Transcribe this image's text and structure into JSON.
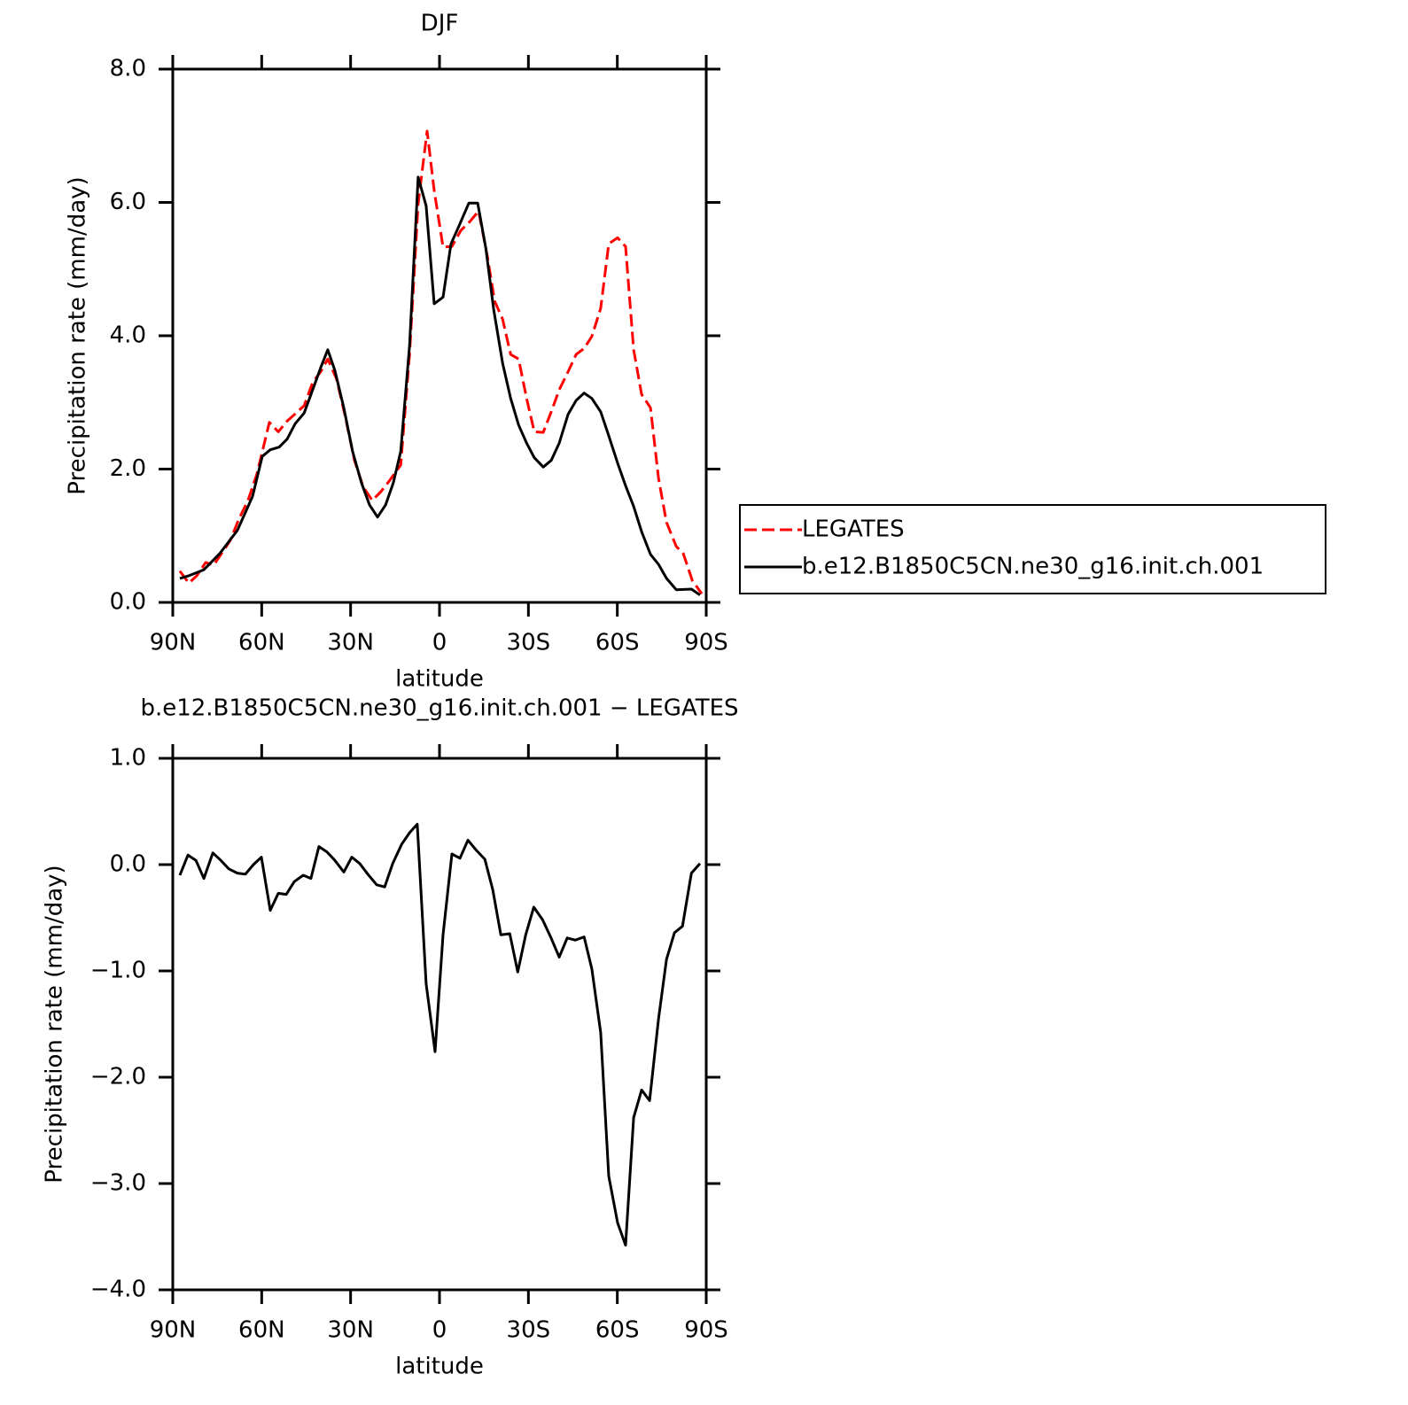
{
  "chart_data": [
    {
      "type": "line",
      "title": "DJF",
      "xlabel": "latitude",
      "ylabel": "Precipitation rate (mm/day)",
      "xlim": [
        90,
        -90
      ],
      "xticks": [
        {
          "value": 90,
          "label": "90N"
        },
        {
          "value": 60,
          "label": "60N"
        },
        {
          "value": 30,
          "label": "30N"
        },
        0,
        {
          "value": -30,
          "label": "30S"
        },
        {
          "value": -60,
          "label": "60S"
        },
        {
          "value": -90,
          "label": "90S"
        }
      ],
      "ylim": [
        0,
        8
      ],
      "yticks": [
        {
          "value": 0,
          "label": "0.0"
        },
        {
          "value": 2,
          "label": "2.0"
        },
        {
          "value": 4,
          "label": "4.0"
        },
        {
          "value": 6,
          "label": "6.0"
        },
        {
          "value": 8,
          "label": "8.0"
        }
      ],
      "legend": "right",
      "series": [
        {
          "name": "LEGATES",
          "color": "#ff0000",
          "dash": true,
          "x": [
            87.6,
            84.6,
            81.9,
            78.9,
            76.2,
            73.6,
            70.6,
            67.6,
            64.6,
            61.6,
            57.4,
            54.4,
            51.4,
            48.4,
            45.7,
            42.8,
            40.1,
            37.7,
            34.7,
            31.8,
            28.7,
            25.7,
            22.7,
            19.8,
            16.8,
            13.1,
            10.1,
            7.2,
            4.2,
            1.8,
            -1.2,
            -4.2,
            -7.2,
            -10.2,
            -13.2,
            -16.2,
            -18.6,
            -21.3,
            -24.0,
            -26.7,
            -29.4,
            -32.0,
            -35.0,
            -37.7,
            -40.4,
            -43.4,
            -46.1,
            -48.8,
            -51.4,
            -54.4,
            -57.1,
            -60.1,
            -62.8,
            -65.5,
            -68.2,
            -71.2,
            -73.9,
            -76.6,
            -79.9,
            -82.3,
            -85.3,
            -88.5
          ],
          "values": [
            0.47,
            0.29,
            0.4,
            0.6,
            0.56,
            0.73,
            0.93,
            1.26,
            1.53,
            1.93,
            2.7,
            2.56,
            2.72,
            2.84,
            2.95,
            3.3,
            3.46,
            3.65,
            3.35,
            2.79,
            2.13,
            1.73,
            1.53,
            1.66,
            1.83,
            2.06,
            3.72,
            5.98,
            7.07,
            6.18,
            5.33,
            5.34,
            5.58,
            5.71,
            5.87,
            5.18,
            4.52,
            4.25,
            3.72,
            3.65,
            3.06,
            2.56,
            2.55,
            2.86,
            3.19,
            3.46,
            3.72,
            3.81,
            3.99,
            4.41,
            5.38,
            5.47,
            5.34,
            3.79,
            3.12,
            2.92,
            1.86,
            1.2,
            0.84,
            0.73,
            0.33,
            0.13
          ]
        },
        {
          "name": "b.e12.B1850C5CN.ne30_g16.init.ch.001",
          "color": "#000000",
          "dash": false,
          "x": [
            87.6,
            84.6,
            79.5,
            74.2,
            68.2,
            63.1,
            59.8,
            57.1,
            54.1,
            51.4,
            48.7,
            45.7,
            42.8,
            40.1,
            37.7,
            35.3,
            32.3,
            29.3,
            26.3,
            23.6,
            20.9,
            18.2,
            15.6,
            13.1,
            10.1,
            7.2,
            4.5,
            1.8,
            -1.2,
            -3.9,
            -6.6,
            -9.9,
            -12.9,
            -15.6,
            -18.3,
            -21.3,
            -24.0,
            -26.7,
            -29.4,
            -32.0,
            -35.0,
            -37.7,
            -40.4,
            -43.4,
            -46.1,
            -48.8,
            -51.4,
            -54.4,
            -57.1,
            -60.1,
            -62.8,
            -65.5,
            -68.2,
            -71.2,
            -73.9,
            -76.6,
            -79.9,
            -85.0,
            -87.9
          ],
          "values": [
            0.36,
            0.4,
            0.49,
            0.73,
            1.08,
            1.59,
            2.19,
            2.29,
            2.33,
            2.45,
            2.68,
            2.84,
            3.19,
            3.52,
            3.79,
            3.48,
            2.92,
            2.26,
            1.79,
            1.46,
            1.28,
            1.46,
            1.79,
            2.26,
            3.85,
            6.38,
            5.95,
            4.48,
            4.58,
            5.38,
            5.65,
            5.99,
            5.99,
            5.32,
            4.39,
            3.59,
            3.06,
            2.66,
            2.39,
            2.17,
            2.03,
            2.13,
            2.39,
            2.82,
            3.03,
            3.14,
            3.06,
            2.86,
            2.5,
            2.09,
            1.75,
            1.44,
            1.06,
            0.72,
            0.57,
            0.36,
            0.19,
            0.2,
            0.11
          ]
        }
      ]
    },
    {
      "type": "line",
      "title": "b.e12.B1850C5CN.ne30_g16.init.ch.001 − LEGATES",
      "xlabel": "latitude",
      "ylabel": "Precipitation rate (mm/day)",
      "xlim": [
        90,
        -90
      ],
      "xticks": [
        {
          "value": 90,
          "label": "90N"
        },
        {
          "value": 60,
          "label": "60N"
        },
        {
          "value": 30,
          "label": "30N"
        },
        0,
        {
          "value": -30,
          "label": "30S"
        },
        {
          "value": -60,
          "label": "60S"
        },
        {
          "value": -90,
          "label": "90S"
        }
      ],
      "ylim": [
        -4,
        1
      ],
      "yticks": [
        {
          "value": -4,
          "label": "−4.0"
        },
        {
          "value": -3,
          "label": "−3.0"
        },
        {
          "value": -2,
          "label": "−2.0"
        },
        {
          "value": -1,
          "label": "−1.0"
        },
        {
          "value": 0,
          "label": "0.0"
        },
        {
          "value": 1,
          "label": "1.0"
        }
      ],
      "color": "#000000",
      "x": [
        87.6,
        84.9,
        82.2,
        79.5,
        76.5,
        73.8,
        71.1,
        68.2,
        65.5,
        62.8,
        60.1,
        57.1,
        54.4,
        51.7,
        49.0,
        46.0,
        43.4,
        40.7,
        38.0,
        35.3,
        32.3,
        29.6,
        26.9,
        24.2,
        21.2,
        18.5,
        15.8,
        12.8,
        10.1,
        7.5,
        4.5,
        1.5,
        -1.2,
        -4.2,
        -6.9,
        -9.6,
        -12.6,
        -15.3,
        -18.0,
        -20.7,
        -23.7,
        -26.4,
        -29.1,
        -31.8,
        -34.8,
        -37.5,
        -40.4,
        -43.1,
        -45.8,
        -48.8,
        -51.4,
        -54.4,
        -57.1,
        -60.1,
        -62.8,
        -65.5,
        -68.2,
        -70.9,
        -73.9,
        -76.6,
        -79.3,
        -82.0,
        -85.0,
        -87.9
      ],
      "values": [
        -0.1,
        0.09,
        0.04,
        -0.13,
        0.11,
        0.04,
        -0.04,
        -0.08,
        -0.09,
        0.0,
        0.07,
        -0.43,
        -0.27,
        -0.28,
        -0.16,
        -0.1,
        -0.13,
        0.17,
        0.12,
        0.04,
        -0.07,
        0.07,
        0.01,
        -0.09,
        -0.19,
        -0.21,
        0.01,
        0.19,
        0.3,
        0.38,
        -1.12,
        -1.76,
        -0.66,
        0.1,
        0.06,
        0.23,
        0.13,
        0.05,
        -0.24,
        -0.66,
        -0.65,
        -1.01,
        -0.66,
        -0.4,
        -0.52,
        -0.68,
        -0.87,
        -0.69,
        -0.71,
        -0.68,
        -0.98,
        -1.58,
        -2.93,
        -3.37,
        -3.58,
        -2.38,
        -2.12,
        -2.22,
        -1.45,
        -0.89,
        -0.64,
        -0.58,
        -0.08,
        0.01
      ]
    }
  ]
}
